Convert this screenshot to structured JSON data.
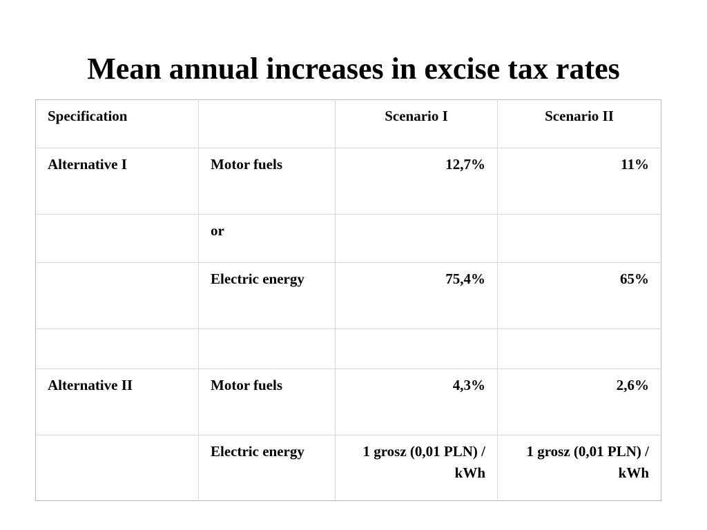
{
  "slide": {
    "title": "Mean annual increases in excise tax rates"
  },
  "table": {
    "headers": [
      "Specification",
      "",
      "Scenario I",
      "Scenario II"
    ],
    "rows": [
      [
        "Alternative I",
        "Motor fuels",
        "12,7%",
        "11%"
      ],
      [
        "",
        "or",
        "",
        ""
      ],
      [
        "",
        "Electric energy",
        "75,4%",
        "65%"
      ],
      [
        "",
        "",
        "",
        ""
      ],
      [
        "Alternative II",
        "Motor fuels",
        "4,3%",
        "2,6%"
      ],
      [
        "",
        "Electric energy",
        "1 grosz (0,01 PLN) / kWh",
        "1 grosz (0,01 PLN) / kWh"
      ]
    ]
  }
}
